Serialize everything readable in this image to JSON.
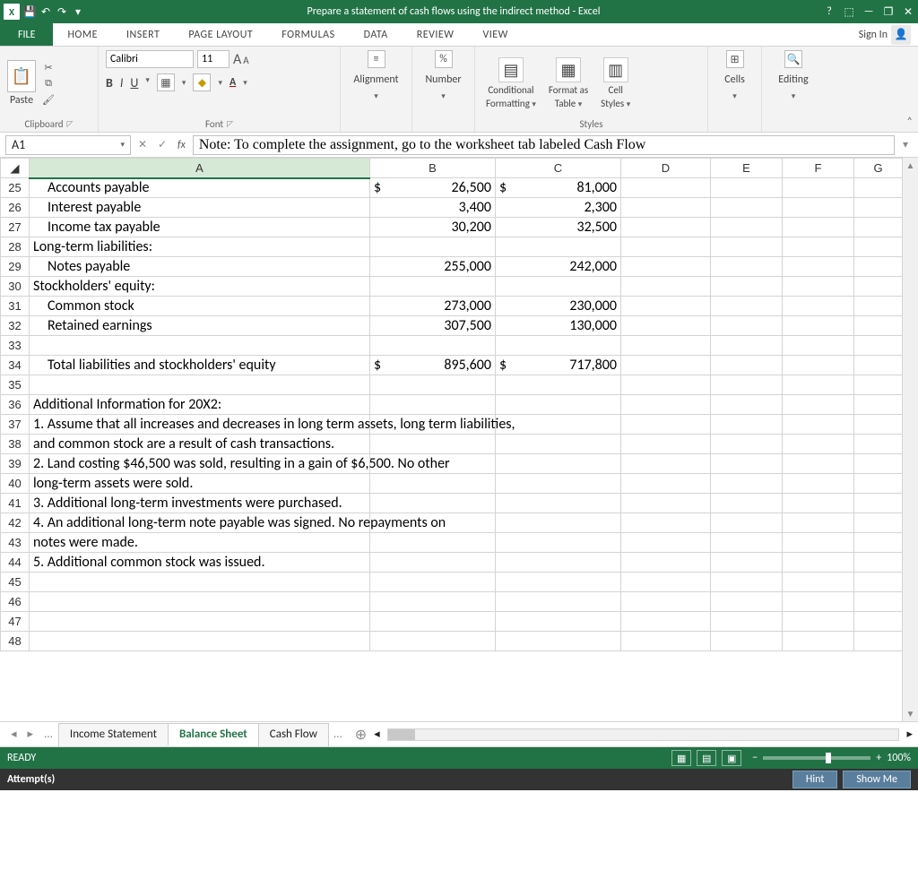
{
  "title": "Prepare a statement of cash flows using the indirect method - Excel",
  "titlebar_icons": [
    "?",
    "⬚",
    "—",
    "❐",
    "✕"
  ],
  "tabs": {
    "file": "FILE",
    "list": [
      "HOME",
      "INSERT",
      "PAGE LAYOUT",
      "FORMULAS",
      "DATA",
      "REVIEW",
      "VIEW"
    ],
    "signin": "Sign In"
  },
  "ribbon": {
    "paste": "Paste",
    "font_name": "Calibri",
    "font_size": "11",
    "groups": {
      "clipboard": "Clipboard",
      "font": "Font",
      "styles": "Styles"
    },
    "labels": {
      "alignment": "Alignment",
      "number": "Number",
      "cond_fmt1": "Conditional",
      "cond_fmt2": "Formatting",
      "fmt_tbl1": "Format as",
      "fmt_tbl2": "Table",
      "cell_styles1": "Cell",
      "cell_styles2": "Styles",
      "cells": "Cells",
      "editing": "Editing"
    },
    "pct": "%"
  },
  "name_box": "A1",
  "formula": "Note: To complete the assignment, go to the worksheet tab labeled Cash Flow",
  "columns": [
    "A",
    "B",
    "C",
    "D",
    "E",
    "F",
    "G"
  ],
  "rows": [
    {
      "n": 25,
      "a": "Accounts payable",
      "b": "26,500",
      "bd": "$",
      "c": "81,000",
      "cd": "$",
      "indent": true
    },
    {
      "n": 26,
      "a": "Interest payable",
      "b": "3,400",
      "c": "2,300",
      "indent": true
    },
    {
      "n": 27,
      "a": "Income tax payable",
      "b": "30,200",
      "c": "32,500",
      "indent": true
    },
    {
      "n": 28,
      "a": "Long-term liabilities:"
    },
    {
      "n": 29,
      "a": "Notes payable",
      "b": "255,000",
      "c": "242,000",
      "indent": true
    },
    {
      "n": 30,
      "a": "Stockholders' equity:"
    },
    {
      "n": 31,
      "a": "Common stock",
      "b": "273,000",
      "c": "230,000",
      "indent": true
    },
    {
      "n": 32,
      "a": "Retained earnings",
      "b": "307,500",
      "c": "130,000",
      "indent": true
    },
    {
      "n": 33
    },
    {
      "n": 34,
      "a": "Total liabilities and stockholders' equity",
      "b": "895,600",
      "bd": "$",
      "c": "717,800",
      "cd": "$",
      "indent": true
    },
    {
      "n": 35
    },
    {
      "n": 36,
      "a": "Additional Information for 20X2:",
      "spill": true
    },
    {
      "n": 37,
      "a": "1. Assume that all increases and decreases in long term assets, long term liabilities,",
      "spill": true
    },
    {
      "n": 38,
      "a": "and common stock are a result of cash transactions.",
      "spill": true
    },
    {
      "n": 39,
      "a": "2. Land costing $46,500 was sold, resulting in a gain of $6,500.  No other",
      "spill": true
    },
    {
      "n": 40,
      "a": "long-term assets were sold.",
      "spill": true
    },
    {
      "n": 41,
      "a": "3. Additional long-term investments were purchased.",
      "spill": true
    },
    {
      "n": 42,
      "a": "4. An additional long-term note payable was signed.  No repayments on",
      "spill": true
    },
    {
      "n": 43,
      "a": "notes were made.",
      "spill": true
    },
    {
      "n": 44,
      "a": "5. Additional common stock was issued.",
      "spill": true
    },
    {
      "n": 45
    },
    {
      "n": 46
    },
    {
      "n": 47
    },
    {
      "n": 48
    }
  ],
  "sheet_tabs": {
    "list": [
      "Income Statement",
      "Balance Sheet",
      "Cash Flow"
    ],
    "active": 1,
    "ellipsis": "..."
  },
  "status": {
    "ready": "READY",
    "zoom": "100%"
  },
  "footer": {
    "attempts": "Attempt(s)",
    "hint": "Hint",
    "showme": "Show Me"
  },
  "colors": {
    "brand": "#217346",
    "footer_bg": "#333333",
    "btn_bg": "#5a7f9c"
  }
}
